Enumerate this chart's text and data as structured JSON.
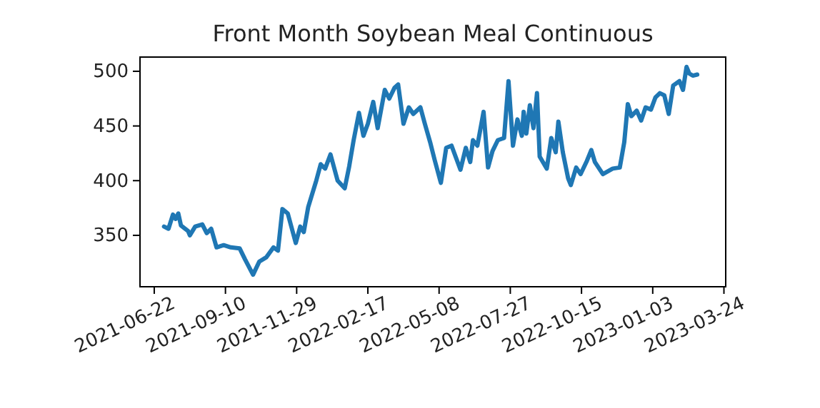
{
  "chart_data": {
    "type": "line",
    "title": "Front Month Soybean Meal Continuous",
    "x": [
      "2021-07-03",
      "2021-07-08",
      "2021-07-13",
      "2021-07-16",
      "2021-07-19",
      "2021-07-22",
      "2021-07-30",
      "2021-08-01",
      "2021-08-07",
      "2021-08-15",
      "2021-08-20",
      "2021-08-25",
      "2021-08-31",
      "2021-09-08",
      "2021-09-16",
      "2021-09-26",
      "2021-10-02",
      "2021-10-11",
      "2021-10-18",
      "2021-10-26",
      "2021-11-03",
      "2021-11-08",
      "2021-11-13",
      "2021-11-19",
      "2021-11-28",
      "2021-12-03",
      "2021-12-07",
      "2021-12-12",
      "2021-12-21",
      "2021-12-26",
      "2021-12-31",
      "2022-01-06",
      "2022-01-14",
      "2022-01-22",
      "2022-01-27",
      "2022-02-01",
      "2022-02-07",
      "2022-02-12",
      "2022-02-17",
      "2022-02-23",
      "2022-02-28",
      "2022-03-08",
      "2022-03-13",
      "2022-03-19",
      "2022-03-23",
      "2022-03-29",
      "2022-04-04",
      "2022-04-09",
      "2022-04-17",
      "2022-04-22",
      "2022-04-28",
      "2022-05-03",
      "2022-05-10",
      "2022-05-16",
      "2022-05-22",
      "2022-06-01",
      "2022-06-07",
      "2022-06-12",
      "2022-06-15",
      "2022-06-20",
      "2022-06-27",
      "2022-07-02",
      "2022-07-07",
      "2022-07-13",
      "2022-07-20",
      "2022-07-25",
      "2022-07-30",
      "2022-08-04",
      "2022-08-09",
      "2022-08-11",
      "2022-08-14",
      "2022-08-18",
      "2022-08-22",
      "2022-08-26",
      "2022-08-29",
      "2022-09-06",
      "2022-09-11",
      "2022-09-16",
      "2022-09-19",
      "2022-09-24",
      "2022-09-30",
      "2022-10-03",
      "2022-10-09",
      "2022-10-14",
      "2022-10-21",
      "2022-10-26",
      "2022-10-30",
      "2022-11-08",
      "2022-11-19",
      "2022-11-27",
      "2022-12-02",
      "2022-12-06",
      "2022-12-10",
      "2022-12-16",
      "2022-12-21",
      "2022-12-26",
      "2023-01-01",
      "2023-01-06",
      "2023-01-11",
      "2023-01-16",
      "2023-01-21",
      "2023-01-26",
      "2023-02-02",
      "2023-02-06",
      "2023-02-10",
      "2023-02-13",
      "2023-02-17",
      "2023-02-22"
    ],
    "series": [
      {
        "color": "#1f77b4",
        "values": [
          358,
          356,
          369,
          365,
          370,
          359,
          354,
          350,
          358,
          360,
          352,
          356,
          339,
          341,
          339,
          338,
          328,
          314,
          326,
          330,
          339,
          336,
          374,
          370,
          343,
          358,
          353,
          376,
          400,
          415,
          411,
          424,
          400,
          393,
          413,
          437,
          462,
          441,
          452,
          472,
          448,
          483,
          475,
          485,
          488,
          452,
          467,
          461,
          467,
          452,
          435,
          419,
          398,
          430,
          432,
          410,
          430,
          417,
          437,
          432,
          463,
          412,
          427,
          437,
          439,
          491,
          432,
          456,
          441,
          463,
          443,
          469,
          448,
          480,
          422,
          411,
          439,
          426,
          454,
          426,
          402,
          396,
          412,
          406,
          418,
          428,
          417,
          406,
          411,
          412,
          435,
          470,
          459,
          464,
          455,
          467,
          465,
          476,
          480,
          478,
          461,
          487,
          491,
          483,
          504,
          498,
          496,
          497
        ]
      }
    ],
    "xlim": [
      "2021-06-06",
      "2023-03-26"
    ],
    "xticks": [
      "2021-06-22",
      "2021-09-10",
      "2021-11-29",
      "2022-02-17",
      "2022-05-08",
      "2022-07-27",
      "2022-10-15",
      "2023-01-03",
      "2023-03-24"
    ],
    "ylim": [
      303,
      513
    ],
    "yticks": [
      350,
      400,
      450,
      500
    ],
    "grid": false,
    "marker": "none",
    "line_style": "solid"
  }
}
